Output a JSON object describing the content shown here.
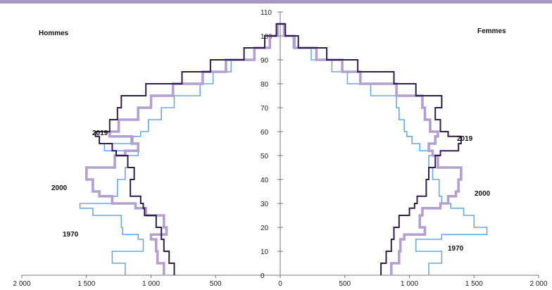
{
  "colors": {
    "top_bar": "#a994c8",
    "year_1970": "#6fa8dc",
    "year_2000": "#b4a0d0",
    "year_2019": "#2e1f4e"
  },
  "chart_data": {
    "type": "line",
    "subtype": "population-pyramid-step",
    "title": "",
    "xlabel": "",
    "ylabel": "",
    "sides": {
      "left": "Hommes",
      "right": "Femmes"
    },
    "xlim_per_side": [
      0,
      2000
    ],
    "x_ticks": [
      "2 000",
      "1 500",
      "1 000",
      "500",
      "0",
      "500",
      "1 000",
      "1 500",
      "2 000"
    ],
    "ylim": [
      0,
      110
    ],
    "y_ticks": [
      "0",
      "10",
      "20",
      "30",
      "40",
      "50",
      "60",
      "70",
      "80",
      "90",
      "100",
      "110"
    ],
    "grid": false,
    "legend": "none",
    "ages": [
      0,
      5,
      10,
      15,
      17,
      20,
      25,
      28,
      30,
      33,
      35,
      40,
      45,
      50,
      52,
      55,
      58,
      60,
      65,
      70,
      75,
      80,
      85,
      90,
      95,
      100,
      105
    ],
    "series": [
      {
        "name": "1970",
        "label_hommes": "1970",
        "label_femmes": "1970",
        "hommes": [
          1200,
          1300,
          1060,
          1100,
          1220,
          1230,
          1450,
          1550,
          1300,
          1260,
          1260,
          1200,
          1180,
          1100,
          1360,
          1140,
          1080,
          1020,
          920,
          820,
          620,
          520,
          380,
          200,
          80,
          20,
          0
        ],
        "femmes": [
          1150,
          1250,
          1050,
          1250,
          1600,
          1500,
          1420,
          1320,
          1250,
          1230,
          1230,
          1180,
          1150,
          1180,
          1080,
          1020,
          980,
          960,
          920,
          900,
          700,
          520,
          400,
          240,
          100,
          30,
          0
        ]
      },
      {
        "name": "2000",
        "label_hommes": "2000",
        "label_femmes": "2000",
        "hommes": [
          900,
          950,
          960,
          1000,
          880,
          900,
          1040,
          1120,
          1300,
          1400,
          1450,
          1500,
          1280,
          1200,
          1100,
          1150,
          1320,
          1250,
          1100,
          1000,
          830,
          600,
          420,
          200,
          80,
          20,
          0
        ],
        "femmes": [
          860,
          920,
          930,
          960,
          1120,
          1080,
          1100,
          1240,
          1300,
          1360,
          1380,
          1400,
          1220,
          1180,
          1150,
          1200,
          1220,
          1160,
          1120,
          1100,
          900,
          620,
          480,
          280,
          110,
          30,
          0
        ]
      },
      {
        "name": "2019",
        "label_hommes": "2019",
        "label_femmes": "2019",
        "hommes": [
          820,
          860,
          900,
          920,
          920,
          960,
          1050,
          1060,
          1080,
          1160,
          1160,
          1130,
          1180,
          1270,
          1300,
          1400,
          1430,
          1320,
          1260,
          1230,
          1040,
          760,
          540,
          280,
          120,
          30,
          0
        ],
        "femmes": [
          780,
          820,
          860,
          880,
          880,
          920,
          1000,
          1040,
          1060,
          1130,
          1130,
          1150,
          1200,
          1240,
          1380,
          1400,
          1300,
          1240,
          1200,
          1250,
          1050,
          880,
          600,
          360,
          140,
          40,
          0
        ]
      }
    ]
  }
}
